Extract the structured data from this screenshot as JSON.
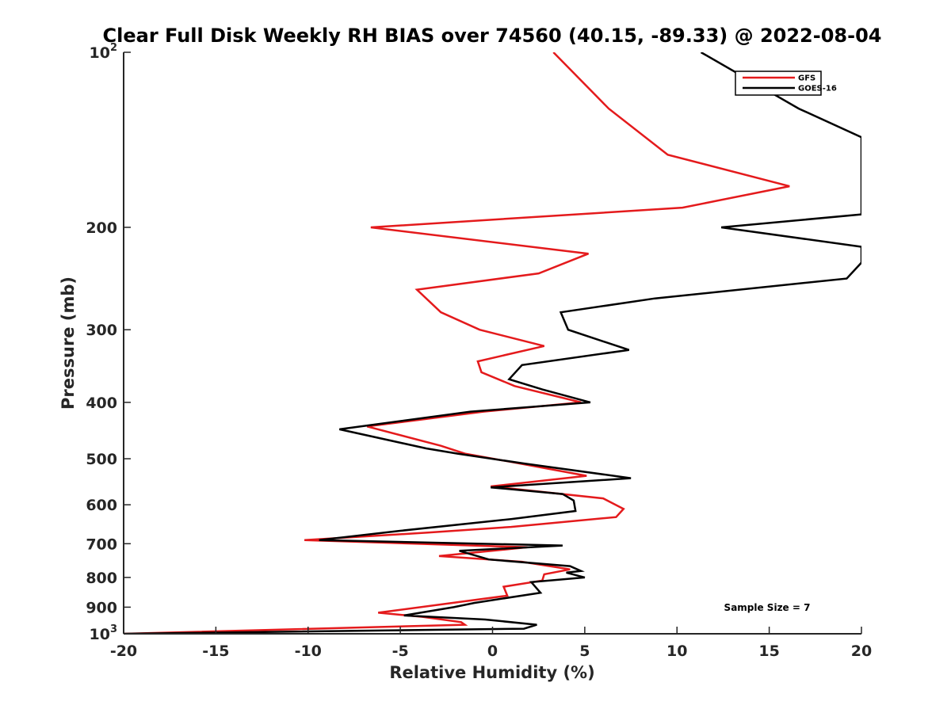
{
  "chart_data": {
    "type": "line",
    "title": "Clear Full Disk Weekly RH BIAS over 74560 (40.15, -89.33) @ 2022-08-04",
    "xlabel": "Relative Humidity (%)",
    "ylabel": "Pressure (mb)",
    "xlim": [
      -20,
      20
    ],
    "ylim": [
      100,
      1000
    ],
    "yscale": "log",
    "y_reversed": true,
    "grid": false,
    "legend_position": "top-right",
    "x_ticks": [
      -20,
      -15,
      -10,
      -5,
      0,
      5,
      10,
      15,
      20
    ],
    "x_tick_labels": [
      "-20",
      "-15",
      "-10",
      "-5",
      "0",
      "5",
      "10",
      "15",
      "20"
    ],
    "y_ticks": [
      100,
      200,
      300,
      400,
      500,
      600,
      700,
      800,
      900,
      1000
    ],
    "y_tick_labels": [
      {
        "base": "10",
        "exp": "2"
      },
      {
        "text": "200"
      },
      {
        "text": "300"
      },
      {
        "text": "400"
      },
      {
        "text": "500"
      },
      {
        "text": "600"
      },
      {
        "text": "700"
      },
      {
        "text": "800"
      },
      {
        "text": "900"
      },
      {
        "base": "10",
        "exp": "3"
      }
    ],
    "annotation": "Sample Size = 7",
    "series": [
      {
        "name": "GFS",
        "color": "#e41a1c",
        "points": [
          [
            3.3,
            100
          ],
          [
            6.3,
            125
          ],
          [
            9.5,
            150
          ],
          [
            16.1,
            170
          ],
          [
            10.3,
            185
          ],
          [
            -6.6,
            200
          ],
          [
            5.2,
            222
          ],
          [
            2.5,
            240
          ],
          [
            -4.1,
            256
          ],
          [
            -2.8,
            280
          ],
          [
            -0.7,
            300
          ],
          [
            2.8,
            320
          ],
          [
            -0.8,
            340
          ],
          [
            -0.6,
            355
          ],
          [
            1.2,
            375
          ],
          [
            4.8,
            400
          ],
          [
            -0.5,
            415
          ],
          [
            -6.8,
            440
          ],
          [
            -2.8,
            475
          ],
          [
            -1.5,
            490
          ],
          [
            0.8,
            505
          ],
          [
            5.1,
            535
          ],
          [
            -0.1,
            558
          ],
          [
            6.0,
            585
          ],
          [
            7.1,
            610
          ],
          [
            6.7,
            630
          ],
          [
            1.0,
            655
          ],
          [
            -3.5,
            670
          ],
          [
            -10.2,
            690
          ],
          [
            1.9,
            710
          ],
          [
            -2.9,
            735
          ],
          [
            1.6,
            752
          ],
          [
            4.2,
            775
          ],
          [
            2.8,
            790
          ],
          [
            2.7,
            810
          ],
          [
            0.6,
            830
          ],
          [
            0.8,
            860
          ],
          [
            -1.6,
            880
          ],
          [
            -6.2,
            920
          ],
          [
            -3.8,
            935
          ],
          [
            -1.7,
            955
          ],
          [
            -1.5,
            965
          ],
          [
            -20,
            1000
          ]
        ]
      },
      {
        "name": "GOES-16",
        "color": "#000000",
        "points": [
          [
            11.3,
            100
          ],
          [
            16.6,
            125
          ],
          [
            20,
            140
          ],
          [
            20,
            190
          ],
          [
            12.4,
            200
          ],
          [
            20,
            216
          ],
          [
            20,
            230
          ],
          [
            19.2,
            245
          ],
          [
            8.8,
            265
          ],
          [
            3.7,
            280
          ],
          [
            4.1,
            300
          ],
          [
            7.4,
            325
          ],
          [
            1.6,
            345
          ],
          [
            0.9,
            365
          ],
          [
            2.7,
            380
          ],
          [
            5.3,
            400
          ],
          [
            -1.2,
            415
          ],
          [
            -8.3,
            445
          ],
          [
            -3.6,
            480
          ],
          [
            -1.9,
            490
          ],
          [
            1.8,
            510
          ],
          [
            7.5,
            540
          ],
          [
            -0.1,
            560
          ],
          [
            3.8,
            575
          ],
          [
            4.4,
            590
          ],
          [
            4.5,
            615
          ],
          [
            1.0,
            635
          ],
          [
            -5.0,
            665
          ],
          [
            -9.4,
            690
          ],
          [
            3.8,
            705
          ],
          [
            -1.8,
            720
          ],
          [
            -0.2,
            745
          ],
          [
            4.2,
            765
          ],
          [
            4.8,
            780
          ],
          [
            4.0,
            785
          ],
          [
            5.0,
            800
          ],
          [
            2.1,
            815
          ],
          [
            2.6,
            850
          ],
          [
            -1.0,
            885
          ],
          [
            -2.1,
            900
          ],
          [
            -4.8,
            930
          ],
          [
            -0.4,
            945
          ],
          [
            2.4,
            965
          ],
          [
            1.7,
            980
          ],
          [
            -20,
            1000
          ]
        ]
      }
    ]
  }
}
